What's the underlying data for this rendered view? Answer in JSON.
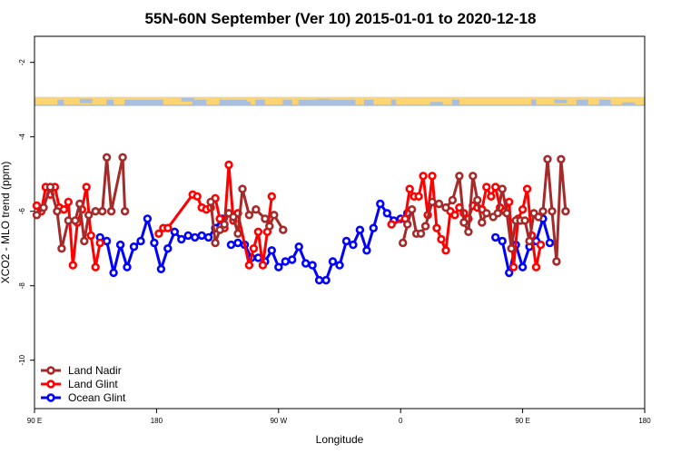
{
  "chart_data": {
    "type": "line",
    "title": "55N-60N September (Ver 10)   2015-01-01 to 2020-12-18",
    "xlabel": "Longitude",
    "ylabel": "XCO2 - MLO trend (ppm)",
    "xlim": [
      -90,
      180
    ],
    "ylim": [
      -11.3,
      -1.3
    ],
    "x_ticks": [
      {
        "value": -90,
        "label": "90 E"
      },
      {
        "value": -36,
        "label": "180"
      },
      {
        "value": 18,
        "label": "90 W"
      },
      {
        "value": 72,
        "label": "0"
      },
      {
        "value": 126,
        "label": "90 E"
      },
      {
        "value": 180,
        "label": "180"
      }
    ],
    "y_ticks": [
      -2,
      -4,
      -6,
      -8,
      -10
    ],
    "grid": false,
    "legend_position": "bottom-left",
    "series": [
      {
        "name": "Land Nadir",
        "color": "#a52a2a",
        "segments": [
          [
            [
              -89,
              -6.1
            ],
            [
              -86,
              -5.9
            ],
            [
              -83,
              -5.35
            ],
            [
              -80,
              -6.0
            ],
            [
              -78,
              -7.0
            ],
            [
              -75,
              -6.25
            ],
            [
              -72,
              -6.25
            ],
            [
              -70,
              -5.8
            ],
            [
              -68,
              -6.8
            ],
            [
              -66,
              -6.1
            ],
            [
              -63,
              -6.0
            ],
            [
              -60,
              -6.0
            ],
            [
              -58,
              -4.55
            ],
            [
              -56,
              -6.0
            ],
            [
              -51,
              -4.55
            ],
            [
              -50,
              -6.0
            ]
          ],
          [
            [
              -12,
              -5.75
            ],
            [
              -10,
              -6.85
            ],
            [
              -8,
              -6.5
            ],
            [
              -6,
              -6.35
            ],
            [
              -4,
              -6.05
            ],
            [
              -2,
              -6.15
            ],
            [
              0,
              -6.6
            ],
            [
              2,
              -5.4
            ],
            [
              5,
              -6.1
            ],
            [
              8,
              -5.95
            ],
            [
              12,
              -6.2
            ],
            [
              14,
              -6.4
            ],
            [
              16,
              -6.1
            ],
            [
              20,
              -6.5
            ]
          ],
          [
            [
              73,
              -6.85
            ],
            [
              75,
              -6.35
            ],
            [
              77,
              -5.95
            ],
            [
              79,
              -6.6
            ],
            [
              81,
              -6.6
            ],
            [
              83,
              -6.4
            ],
            [
              86,
              -5.75
            ],
            [
              89,
              -5.8
            ],
            [
              92,
              -5.9
            ],
            [
              95,
              -5.7
            ],
            [
              98,
              -5.05
            ],
            [
              100,
              -6.3
            ],
            [
              102,
              -6.55
            ],
            [
              104,
              -5.05
            ],
            [
              106,
              -5.7
            ],
            [
              108,
              -6.3
            ],
            [
              110,
              -6.05
            ],
            [
              113,
              -6.15
            ],
            [
              115,
              -6.05
            ],
            [
              117,
              -5.4
            ],
            [
              119,
              -6.05
            ],
            [
              121,
              -7.0
            ],
            [
              123,
              -6.25
            ],
            [
              125,
              -6.25
            ],
            [
              127,
              -6.25
            ],
            [
              129,
              -6.8
            ],
            [
              131,
              -6.05
            ],
            [
              133,
              -6.15
            ],
            [
              135,
              -6.0
            ],
            [
              137,
              -4.6
            ],
            [
              139,
              -6.0
            ],
            [
              141,
              -7.35
            ],
            [
              143,
              -4.6
            ],
            [
              145,
              -6.0
            ]
          ]
        ]
      },
      {
        "name": "Land Glint",
        "color": "#ff0000",
        "segments": [
          [
            [
              -89,
              -5.85
            ],
            [
              -87,
              -6.0
            ],
            [
              -85,
              -5.35
            ],
            [
              -83,
              -5.55
            ],
            [
              -81,
              -5.35
            ],
            [
              -79,
              -5.9
            ],
            [
              -77,
              -5.95
            ],
            [
              -75,
              -5.75
            ],
            [
              -73,
              -7.45
            ],
            [
              -71,
              -6.3
            ],
            [
              -69,
              -5.95
            ],
            [
              -67,
              -5.35
            ],
            [
              -65,
              -6.65
            ],
            [
              -63,
              -7.5
            ],
            [
              -61,
              -6.85
            ]
          ],
          [
            [
              -35,
              -6.6
            ],
            [
              -33,
              -6.45
            ],
            [
              -31,
              -6.45
            ],
            [
              -20,
              -5.55
            ],
            [
              -18,
              -5.6
            ],
            [
              -16,
              -5.9
            ],
            [
              -14,
              -5.95
            ],
            [
              -12,
              -5.9
            ],
            [
              -10,
              -5.65
            ],
            [
              -8,
              -6.2
            ],
            [
              -6,
              -6.45
            ],
            [
              -4,
              -4.75
            ],
            [
              -2,
              -6.25
            ],
            [
              0,
              -6.05
            ],
            [
              5,
              -7.45
            ],
            [
              7,
              -7.0
            ],
            [
              9,
              -6.55
            ],
            [
              11,
              -7.45
            ],
            [
              13,
              -6.55
            ],
            [
              15,
              -5.6
            ]
          ],
          [
            [
              68,
              -6.35
            ],
            [
              74,
              -6.2
            ],
            [
              76,
              -5.4
            ],
            [
              78,
              -5.6
            ],
            [
              80,
              -5.6
            ],
            [
              82,
              -5.05
            ],
            [
              84,
              -6.1
            ],
            [
              86,
              -5.05
            ],
            [
              88,
              -6.45
            ],
            [
              90,
              -6.75
            ],
            [
              92,
              -7.05
            ],
            [
              94,
              -6.0
            ],
            [
              96,
              -6.1
            ],
            [
              98,
              -5.9
            ],
            [
              100,
              -6.05
            ],
            [
              102,
              -6.2
            ],
            [
              104,
              -5.85
            ],
            [
              106,
              -5.9
            ],
            [
              108,
              -5.95
            ],
            [
              110,
              -5.35
            ],
            [
              112,
              -5.6
            ],
            [
              114,
              -5.35
            ],
            [
              116,
              -5.9
            ],
            [
              118,
              -6.0
            ],
            [
              120,
              -5.75
            ],
            [
              122,
              -7.5
            ],
            [
              124,
              -6.2
            ],
            [
              126,
              -5.95
            ],
            [
              128,
              -5.4
            ],
            [
              130,
              -6.65
            ],
            [
              132,
              -7.5
            ],
            [
              134,
              -6.9
            ]
          ]
        ]
      },
      {
        "name": "Ocean Glint",
        "color": "#0000ff",
        "segments": [
          [
            [
              -61,
              -6.7
            ],
            [
              -58,
              -6.8
            ],
            [
              -55,
              -7.65
            ],
            [
              -52,
              -6.9
            ],
            [
              -49,
              -7.5
            ],
            [
              -46,
              -6.95
            ],
            [
              -43,
              -6.8
            ],
            [
              -40,
              -6.2
            ],
            [
              -37,
              -6.85
            ],
            [
              -34,
              -7.55
            ],
            [
              -31,
              -7.0
            ],
            [
              -28,
              -6.55
            ],
            [
              -25,
              -6.75
            ],
            [
              -22,
              -6.65
            ],
            [
              -19,
              -6.7
            ],
            [
              -16,
              -6.65
            ],
            [
              -13,
              -6.7
            ],
            [
              -10,
              -6.45
            ],
            [
              -7,
              -6.2
            ]
          ],
          [
            [
              -3,
              -6.9
            ],
            [
              0,
              -6.85
            ],
            [
              3,
              -6.9
            ],
            [
              6,
              -7.25
            ],
            [
              9,
              -7.25
            ],
            [
              12,
              -7.35
            ],
            [
              15,
              -7.05
            ],
            [
              18,
              -7.5
            ],
            [
              21,
              -7.35
            ],
            [
              24,
              -7.3
            ],
            [
              27,
              -6.95
            ],
            [
              30,
              -7.4
            ],
            [
              33,
              -7.45
            ],
            [
              36,
              -7.85
            ],
            [
              39,
              -7.85
            ],
            [
              42,
              -7.35
            ],
            [
              45,
              -7.45
            ],
            [
              48,
              -6.8
            ],
            [
              51,
              -6.9
            ],
            [
              54,
              -6.5
            ],
            [
              57,
              -7.05
            ],
            [
              60,
              -6.45
            ],
            [
              63,
              -5.8
            ],
            [
              66,
              -6.05
            ],
            [
              69,
              -6.25
            ],
            [
              72,
              -6.2
            ],
            [
              75,
              -6.05
            ]
          ],
          [
            [
              114,
              -6.7
            ],
            [
              117,
              -6.8
            ],
            [
              120,
              -7.65
            ],
            [
              123,
              -6.9
            ],
            [
              126,
              -7.5
            ],
            [
              129,
              -6.95
            ],
            [
              132,
              -6.8
            ],
            [
              135,
              -6.2
            ],
            [
              138,
              -6.85
            ]
          ]
        ]
      }
    ]
  },
  "map_strip": {
    "y_top": -2.93,
    "y_bottom": -3.17,
    "land_color": "#fcd471",
    "ocean_color": "#a9bfdd"
  }
}
